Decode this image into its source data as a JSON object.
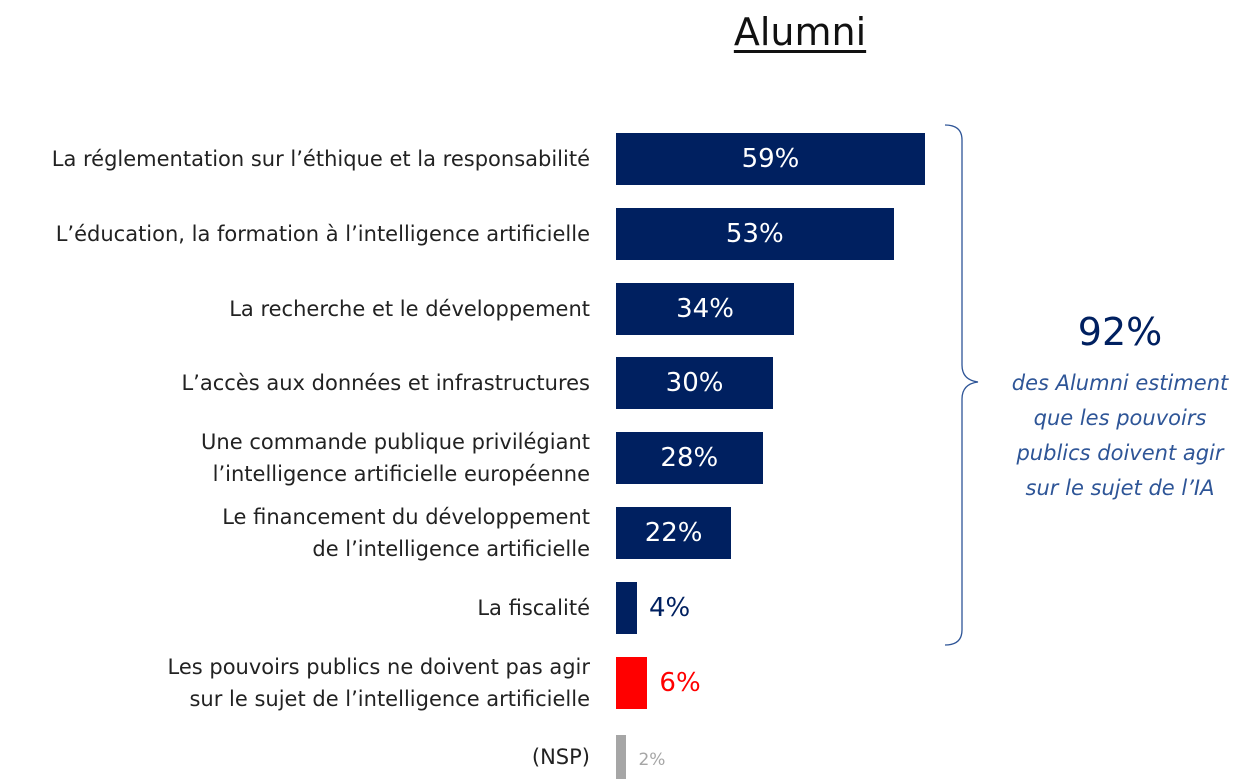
{
  "chart_data": {
    "type": "bar",
    "orientation": "horizontal",
    "title": "Alumni",
    "categories": [
      "La réglementation sur l’éthique et la responsabilité",
      "L’éducation, la formation à l’intelligence artificielle",
      "La recherche et le développement",
      "L’accès aux données et infrastructures",
      "Une commande publique privilégiant\nl’intelligence artificielle européenne",
      "Le financement du développement\nde l’intelligence artificielle",
      "La fiscalité",
      "Les pouvoirs publics ne doivent pas agir\nsur le sujet de l’intelligence artificielle",
      "(NSP)"
    ],
    "values": [
      59,
      53,
      34,
      30,
      28,
      22,
      4,
      6,
      2
    ],
    "value_labels": [
      "59%",
      "53%",
      "34%",
      "30%",
      "28%",
      "22%",
      "4%",
      "6%",
      "2%"
    ],
    "colors": [
      "#002060",
      "#002060",
      "#002060",
      "#002060",
      "#002060",
      "#002060",
      "#002060",
      "#ff0000",
      "#a6a6a6"
    ],
    "annotation": {
      "value": 92,
      "label": "92%",
      "text": "des Alumni estiment\nque les pouvoirs\npublics doivent agir\nsur le sujet de l’IA"
    }
  }
}
